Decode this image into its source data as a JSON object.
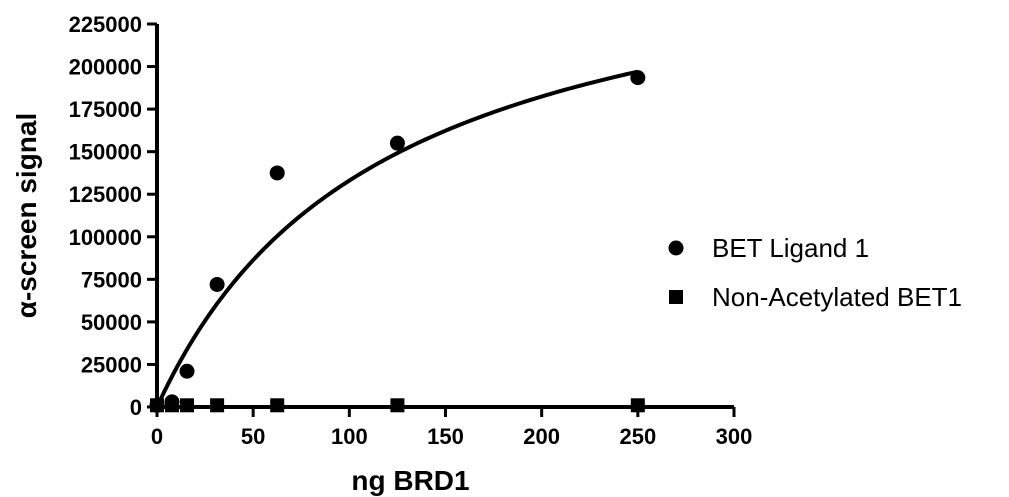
{
  "chart_data": {
    "type": "scatter",
    "title": "",
    "xlabel": "ng BRD1",
    "ylabel": "α-screen signal",
    "xlim": [
      0,
      300
    ],
    "ylim": [
      0,
      225000
    ],
    "xticks": [
      0,
      50,
      100,
      150,
      200,
      250,
      300
    ],
    "yticks": [
      0,
      25000,
      50000,
      75000,
      100000,
      125000,
      150000,
      175000,
      200000,
      225000
    ],
    "grid": false,
    "legend_position": "right",
    "series": [
      {
        "name": "BET Ligand 1",
        "marker": "circle",
        "color": "#000000",
        "x": [
          0,
          7.8,
          15.6,
          31.25,
          62.5,
          125,
          250
        ],
        "y": [
          1000,
          3000,
          21000,
          72000,
          137500,
          155000,
          193500
        ],
        "fit": {
          "model": "one-site-binding",
          "bmax": 290000,
          "kd": 118
        }
      },
      {
        "name": "Non-Acetylated BET1",
        "marker": "square",
        "color": "#000000",
        "x": [
          0,
          7.8,
          15.6,
          31.25,
          62.5,
          125,
          250
        ],
        "y": [
          1000,
          1000,
          1000,
          1000,
          1000,
          1000,
          1000
        ],
        "fit": {
          "model": "flat",
          "value": 0
        }
      }
    ]
  }
}
